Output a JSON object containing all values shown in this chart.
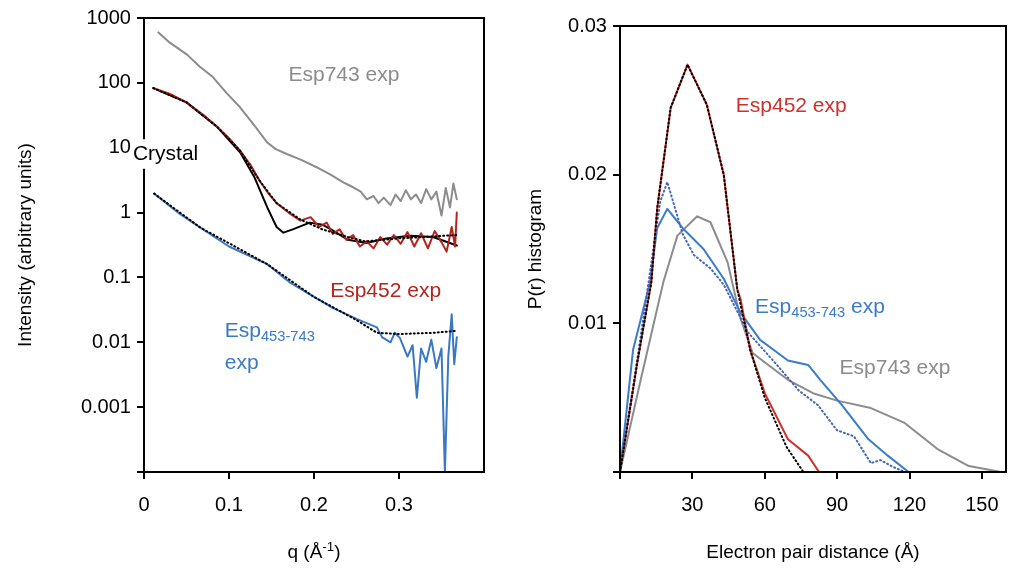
{
  "chart_data": [
    {
      "type": "line",
      "xlabel": "q (Å$^{-1}$)",
      "ylabel": "Intensity (arbitrary units)",
      "log": "y",
      "marker": "none",
      "xlim": [
        0,
        0.4
      ],
      "ylim": [
        0.0001,
        1000
      ],
      "xticks": [
        0,
        0.1,
        0.2,
        0.3
      ],
      "yticks": [
        {
          "value": 0.0001,
          "label": null
        },
        0.001,
        0.01,
        0.1,
        1,
        10,
        100,
        1000
      ],
      "series": [
        {
          "name": "Esp743 exp",
          "color": "#8c8c8c",
          "line_style": "solid",
          "x": [
            0.017,
            0.03,
            0.051,
            0.065,
            0.081,
            0.097,
            0.113,
            0.13,
            0.145,
            0.155,
            0.168,
            0.185,
            0.203,
            0.22,
            0.235,
            0.245,
            0.255,
            0.262,
            0.27,
            0.276,
            0.282,
            0.29,
            0.296,
            0.302,
            0.308,
            0.314,
            0.32,
            0.326,
            0.332,
            0.338,
            0.344,
            0.35,
            0.355,
            0.36,
            0.364,
            0.368
          ],
          "values": [
            600,
            420,
            270,
            180,
            123,
            70,
            42,
            22,
            12,
            9.5,
            8,
            6.5,
            5,
            3.8,
            2.9,
            2.5,
            2.1,
            1.6,
            1.8,
            1.4,
            1.7,
            1.3,
            1.9,
            1.5,
            2.2,
            1.6,
            1.9,
            1.4,
            2.3,
            1.6,
            2.1,
            0.9,
            2.4,
            1.2,
            2.8,
            1.6
          ]
        },
        {
          "name": "Esp452 exp",
          "color": "#b3241c",
          "line_style": "solid",
          "x": [
            0.011,
            0.03,
            0.051,
            0.07,
            0.086,
            0.1,
            0.113,
            0.125,
            0.136,
            0.146,
            0.156,
            0.17,
            0.184,
            0.196,
            0.206,
            0.215,
            0.222,
            0.23,
            0.238,
            0.246,
            0.254,
            0.262,
            0.27,
            0.278,
            0.286,
            0.294,
            0.302,
            0.31,
            0.318,
            0.326,
            0.334,
            0.342,
            0.35,
            0.356,
            0.362,
            0.366,
            0.368
          ],
          "values": [
            83,
            68,
            49,
            32,
            21,
            14,
            9,
            5.5,
            3.1,
            2,
            1.4,
            1,
            0.75,
            0.85,
            0.6,
            0.7,
            0.47,
            0.55,
            0.38,
            0.45,
            0.3,
            0.36,
            0.28,
            0.42,
            0.32,
            0.45,
            0.33,
            0.5,
            0.3,
            0.48,
            0.28,
            0.52,
            0.35,
            0.25,
            0.6,
            0.3,
            1.0
          ]
        },
        {
          "color": "#000000",
          "line_style": "dotted",
          "x": [
            0.011,
            0.05,
            0.086,
            0.113,
            0.136,
            0.156,
            0.184,
            0.21,
            0.24,
            0.26,
            0.3,
            0.368
          ],
          "values": [
            83,
            50,
            21,
            9,
            3.1,
            1.4,
            0.78,
            0.55,
            0.42,
            0.36,
            0.4,
            0.45
          ]
        },
        {
          "name": "Crystal",
          "color": "#000000",
          "line_style": "solid",
          "x": [
            0.011,
            0.05,
            0.086,
            0.113,
            0.13,
            0.145,
            0.156,
            0.164,
            0.175,
            0.195,
            0.21,
            0.222,
            0.24,
            0.262,
            0.285,
            0.313,
            0.34,
            0.368
          ],
          "values": [
            83,
            50,
            21,
            8.5,
            3.5,
            1.2,
            0.6,
            0.49,
            0.55,
            0.7,
            0.65,
            0.53,
            0.38,
            0.34,
            0.4,
            0.44,
            0.42,
            0.31
          ]
        },
        {
          "name": "Esp$_{453-743}$ exp",
          "color": "#3a78c3",
          "line_style": "solid",
          "x": [
            0.012,
            0.04,
            0.066,
            0.1,
            0.145,
            0.172,
            0.2,
            0.222,
            0.25,
            0.274,
            0.28,
            0.29,
            0.295,
            0.301,
            0.31,
            0.316,
            0.321,
            0.326,
            0.332,
            0.338,
            0.344,
            0.35,
            0.354,
            0.358,
            0.362,
            0.365,
            0.368
          ],
          "values": [
            1.96,
            1.0,
            0.59,
            0.3,
            0.16,
            0.083,
            0.05,
            0.034,
            0.023,
            0.017,
            0.012,
            0.01,
            0.014,
            0.0117,
            0.006,
            0.009,
            0.0014,
            0.008,
            0.005,
            0.011,
            0.004,
            0.008,
            0.0001,
            0.006,
            0.027,
            0.0046,
            0.012
          ]
        },
        {
          "color": "#000000",
          "line_style": "dotted",
          "x": [
            0.012,
            0.066,
            0.145,
            0.2,
            0.25,
            0.274,
            0.3,
            0.34,
            0.368
          ],
          "values": [
            1.96,
            0.59,
            0.16,
            0.05,
            0.022,
            0.014,
            0.0134,
            0.014,
            0.015
          ]
        }
      ]
    },
    {
      "type": "line",
      "xlabel": "Electron pair distance (Å)",
      "ylabel": "P(r) histogram",
      "marker": "none",
      "xlim": [
        0,
        160
      ],
      "ylim": [
        0,
        0.03
      ],
      "xticks": [
        {
          "value": 0,
          "label": null
        },
        30,
        60,
        90,
        120,
        150
      ],
      "yticks": [
        {
          "value": 0,
          "label": null
        },
        0.01,
        0.02,
        0.03
      ],
      "series": [
        {
          "name": "Esp452 exp",
          "color": "#d0302a",
          "line_style": "solid",
          "x": [
            0,
            7,
            13,
            15.4,
            21,
            28,
            36,
            43,
            48.6,
            50,
            54,
            60,
            69.6,
            78,
            82.5
          ],
          "values": [
            0,
            0.0072,
            0.0128,
            0.0177,
            0.0245,
            0.0274,
            0.0247,
            0.02,
            0.0123,
            0.0116,
            0.0082,
            0.0053,
            0.0022,
            0.0011,
            0
          ]
        },
        {
          "color": "#000000",
          "line_style": "dotted",
          "x": [
            0,
            7,
            13,
            15.4,
            21,
            28,
            36,
            43,
            48.6,
            54,
            60,
            69,
            76
          ],
          "values": [
            0,
            0.0072,
            0.0128,
            0.0177,
            0.0245,
            0.0274,
            0.0247,
            0.02,
            0.0123,
            0.0082,
            0.005,
            0.0017,
            0
          ]
        },
        {
          "name": "Esp$_{453-743}$ exp",
          "color": "#3a7cc9",
          "line_style": "solid",
          "x": [
            0,
            5.4,
            12.5,
            15.4,
            19.6,
            26,
            34.6,
            43,
            50,
            58,
            69.6,
            78,
            83,
            92,
            103,
            111,
            119.6
          ],
          "values": [
            0,
            0.0082,
            0.0128,
            0.0164,
            0.0177,
            0.0164,
            0.015,
            0.013,
            0.0107,
            0.0089,
            0.0075,
            0.0072,
            0.0062,
            0.0045,
            0.0022,
            0.0011,
            0
          ]
        },
        {
          "color": "#4466b0",
          "line_style": "dotted",
          "x": [
            0,
            8,
            16.7,
            19.6,
            26,
            30.6,
            37.5,
            43,
            53,
            64,
            74,
            82,
            90,
            97,
            104,
            108,
            112.5,
            118
          ],
          "values": [
            0,
            0.0085,
            0.0182,
            0.0195,
            0.016,
            0.0146,
            0.0137,
            0.0126,
            0.0094,
            0.0074,
            0.0055,
            0.0045,
            0.0028,
            0.0024,
            0.0006,
            0.0008,
            0.0004,
            0
          ]
        },
        {
          "name": "Esp743 exp",
          "color": "#8c8c8c",
          "line_style": "solid",
          "x": [
            0,
            8.3,
            18,
            23.8,
            32,
            37.5,
            44.6,
            50,
            55,
            69.6,
            80,
            90,
            104,
            118,
            132,
            144.6,
            158
          ],
          "values": [
            0,
            0.006,
            0.0128,
            0.0159,
            0.0172,
            0.0168,
            0.0141,
            0.0103,
            0.008,
            0.0062,
            0.0053,
            0.0048,
            0.0043,
            0.0033,
            0.0015,
            0.0004,
            0
          ]
        }
      ]
    }
  ]
}
